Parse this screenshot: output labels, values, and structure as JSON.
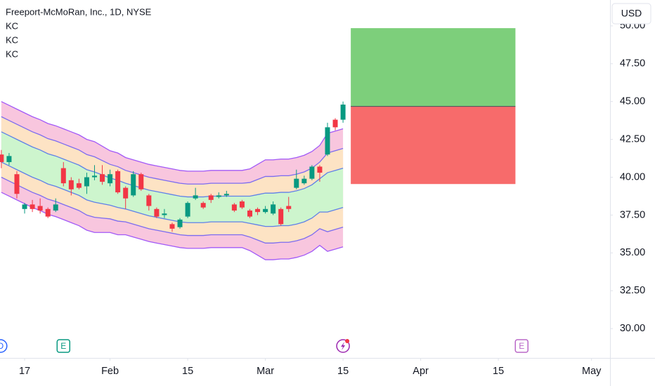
{
  "chart_data": {
    "type": "candlestick",
    "title": "Freeport-McMoRan, Inc., 1D, NYSE",
    "currency": "USD",
    "xlim": [
      -3.17,
      75.38
    ],
    "ylim": [
      28.06,
      51.71
    ],
    "yticks": [
      {
        "value": 30,
        "label": "30.00"
      },
      {
        "value": 32.5,
        "label": "32.50"
      },
      {
        "value": 35,
        "label": "35.00"
      },
      {
        "value": 37.5,
        "label": "37.50"
      },
      {
        "value": 40,
        "label": "40.00"
      },
      {
        "value": 42.5,
        "label": "42.50"
      },
      {
        "value": 45,
        "label": "45.00"
      },
      {
        "value": 47.5,
        "label": "47.50"
      },
      {
        "value": 50,
        "label": "50.00"
      }
    ],
    "xticks": [
      {
        "value": 0,
        "label": "17"
      },
      {
        "value": 11,
        "label": "Feb"
      },
      {
        "value": 21,
        "label": "15"
      },
      {
        "value": 31,
        "label": "Mar"
      },
      {
        "value": 41,
        "label": "15"
      },
      {
        "value": 51,
        "label": "Apr"
      },
      {
        "value": 61,
        "label": "15"
      },
      {
        "value": 73,
        "label": "May"
      }
    ],
    "up_color": "#089981",
    "down_color": "#f23645",
    "x": [
      -3,
      -2,
      -1,
      0,
      1,
      2,
      3,
      4,
      5,
      6,
      7,
      8,
      9,
      10,
      11,
      12,
      13,
      14,
      15,
      16,
      17,
      18,
      19,
      20,
      21,
      22,
      23,
      24,
      25,
      26,
      27,
      28,
      29,
      30,
      31,
      32,
      33,
      34,
      35,
      36,
      37,
      38,
      39,
      40,
      41
    ],
    "open": [
      41.5,
      41.0,
      40.2,
      37.9,
      38.2,
      38.1,
      37.9,
      37.8,
      40.6,
      39.8,
      39.6,
      39.4,
      40.0,
      40.2,
      39.6,
      40.4,
      39.3,
      38.8,
      40.2,
      38.8,
      37.9,
      37.5,
      36.9,
      36.7,
      37.4,
      38.6,
      38.3,
      38.8,
      38.7,
      38.8,
      38.2,
      38.4,
      37.8,
      37.9,
      37.7,
      37.6,
      37.9,
      38.1,
      39.3,
      39.6,
      39.9,
      40.7,
      41.5,
      43.8,
      43.8
    ],
    "high": [
      41.8,
      41.6,
      40.4,
      38.3,
      38.5,
      38.6,
      38.0,
      38.6,
      41.0,
      40.0,
      39.9,
      40.3,
      40.8,
      40.8,
      40.5,
      40.5,
      39.4,
      40.4,
      40.3,
      38.9,
      38.0,
      37.9,
      37.0,
      37.3,
      38.4,
      39.3,
      38.4,
      38.9,
      39.0,
      39.1,
      38.3,
      38.5,
      37.9,
      38.0,
      38.1,
      38.4,
      38.0,
      38.7,
      40.5,
      40.1,
      40.8,
      40.8,
      43.6,
      43.9,
      45.0
    ],
    "low": [
      40.6,
      40.8,
      38.6,
      37.6,
      37.7,
      37.6,
      37.3,
      37.7,
      39.4,
      38.8,
      39.2,
      38.9,
      39.8,
      39.5,
      39.4,
      38.9,
      37.9,
      38.7,
      39.1,
      37.8,
      37.3,
      37.3,
      36.4,
      36.6,
      37.3,
      38.5,
      37.9,
      38.3,
      38.6,
      38.7,
      37.7,
      37.9,
      37.3,
      37.5,
      37.6,
      37.5,
      36.8,
      37.7,
      39.2,
      39.5,
      39.8,
      39.7,
      41.4,
      43.1,
      43.6
    ],
    "close": [
      41.0,
      41.4,
      38.9,
      38.2,
      37.9,
      37.8,
      37.4,
      38.2,
      39.6,
      39.2,
      39.3,
      40.0,
      40.1,
      39.7,
      40.2,
      39.0,
      38.6,
      40.2,
      39.2,
      38.1,
      37.4,
      37.6,
      36.6,
      37.2,
      38.3,
      38.8,
      38.0,
      38.5,
      38.8,
      38.9,
      37.8,
      38.0,
      37.4,
      37.7,
      37.9,
      38.2,
      36.9,
      37.9,
      39.9,
      39.9,
      40.7,
      40.3,
      43.3,
      43.3,
      44.8
    ],
    "indicators": [
      {
        "name": "KC",
        "line_color": "#a259f7",
        "fill": "#f8c6de",
        "upper": [
          45.0,
          44.75,
          44.5,
          44.25,
          44.0,
          43.8,
          43.55,
          43.4,
          43.2,
          43.0,
          42.8,
          42.5,
          42.35,
          42.05,
          41.75,
          41.6,
          41.3,
          41.15,
          41.0,
          40.85,
          40.75,
          40.65,
          40.55,
          40.45,
          40.4,
          40.4,
          40.4,
          40.45,
          40.45,
          40.45,
          40.45,
          40.45,
          40.55,
          40.85,
          41.15,
          41.15,
          41.2,
          41.2,
          41.3,
          41.45,
          41.7,
          42.1,
          42.9,
          43.05,
          43.2
        ],
        "lower": [
          39.0,
          38.75,
          38.5,
          38.25,
          38.0,
          37.8,
          37.55,
          37.4,
          37.2,
          37.0,
          36.8,
          36.5,
          36.35,
          36.35,
          36.35,
          36.2,
          36.2,
          36.05,
          35.9,
          35.75,
          35.65,
          35.55,
          35.45,
          35.35,
          35.3,
          35.3,
          35.3,
          35.35,
          35.35,
          35.35,
          35.35,
          35.35,
          35.15,
          34.85,
          34.55,
          34.55,
          34.6,
          34.6,
          34.7,
          34.85,
          35.1,
          35.5,
          35.1,
          35.25,
          35.4
        ]
      },
      {
        "name": "KC",
        "line_color": "#7b6cf0",
        "fill": "#fde3c4",
        "upper": [
          44.0,
          43.75,
          43.5,
          43.25,
          43.0,
          42.8,
          42.55,
          42.4,
          42.2,
          42.0,
          41.8,
          41.5,
          41.35,
          41.1,
          40.85,
          40.7,
          40.45,
          40.3,
          40.15,
          40.0,
          39.9,
          39.8,
          39.7,
          39.6,
          39.55,
          39.55,
          39.55,
          39.6,
          39.6,
          39.6,
          39.6,
          39.6,
          39.65,
          39.85,
          40.05,
          40.05,
          40.1,
          40.1,
          40.2,
          40.35,
          40.6,
          41.0,
          41.6,
          41.75,
          41.9
        ],
        "lower": [
          40.0,
          39.75,
          39.5,
          39.25,
          39.0,
          38.8,
          38.55,
          38.4,
          38.2,
          38.0,
          37.8,
          37.5,
          37.35,
          37.3,
          37.25,
          37.1,
          37.05,
          36.9,
          36.75,
          36.6,
          36.5,
          36.4,
          36.3,
          36.2,
          36.15,
          36.15,
          36.15,
          36.2,
          36.2,
          36.2,
          36.2,
          36.2,
          36.05,
          35.85,
          35.65,
          35.65,
          35.7,
          35.7,
          35.8,
          35.95,
          36.2,
          36.6,
          36.4,
          36.55,
          36.7
        ]
      },
      {
        "name": "KC",
        "line_color": "#5f80e8",
        "fill": "#cdf5cd",
        "upper": [
          43.0,
          42.75,
          42.5,
          42.25,
          42.0,
          41.8,
          41.55,
          41.4,
          41.2,
          41.0,
          40.8,
          40.5,
          40.35,
          40.15,
          39.95,
          39.8,
          39.6,
          39.45,
          39.3,
          39.15,
          39.05,
          38.95,
          38.85,
          38.75,
          38.7,
          38.7,
          38.7,
          38.75,
          38.75,
          38.75,
          38.75,
          38.75,
          38.75,
          38.85,
          38.95,
          38.95,
          39.0,
          39.0,
          39.1,
          39.25,
          39.5,
          39.9,
          40.3,
          40.45,
          40.6
        ],
        "lower": [
          41.0,
          40.75,
          40.5,
          40.25,
          40.0,
          39.8,
          39.55,
          39.4,
          39.2,
          39.0,
          38.8,
          38.5,
          38.35,
          38.25,
          38.15,
          38.0,
          37.9,
          37.75,
          37.6,
          37.45,
          37.35,
          37.25,
          37.15,
          37.05,
          37.0,
          37.0,
          37.0,
          37.05,
          37.05,
          37.05,
          37.05,
          37.05,
          36.95,
          36.85,
          36.75,
          36.75,
          36.8,
          36.8,
          36.9,
          37.05,
          37.3,
          37.7,
          37.7,
          37.85,
          38.0
        ]
      }
    ],
    "position": {
      "x": [
        42.0,
        63.2
      ],
      "target": 49.85,
      "entry": 44.68,
      "stop": 39.55,
      "profit_color": "#7dcf7b",
      "loss_color": "#f76b6b"
    },
    "events": [
      {
        "label": "D",
        "x": -3.1,
        "color": "#2962ff"
      },
      {
        "label": "E",
        "x": 5,
        "color": "#089981"
      },
      {
        "x": 41,
        "color": "#9c27b0"
      },
      {
        "label": "E",
        "x": 64,
        "color": "#ba68c8"
      }
    ]
  }
}
